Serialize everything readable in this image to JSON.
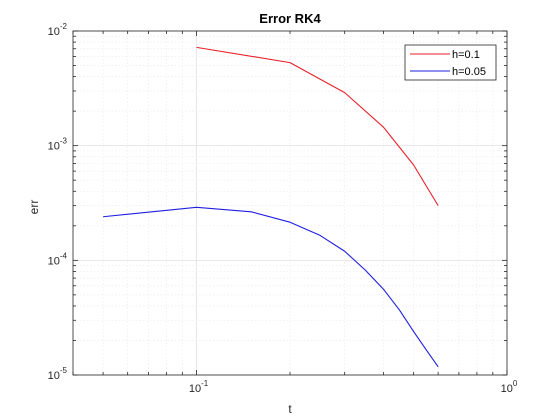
{
  "chart_data": {
    "type": "line",
    "title": "Error RK4",
    "xlabel": "t",
    "ylabel": "err",
    "xscale": "log",
    "yscale": "log",
    "xlim": [
      0.04,
      1
    ],
    "ylim": [
      1e-05,
      0.01
    ],
    "grid": true,
    "legend_position": "top-right",
    "x_tick_labels": [
      {
        "value": 0.1,
        "base": "10",
        "exp": "-1"
      },
      {
        "value": 1,
        "base": "10",
        "exp": "0"
      }
    ],
    "y_tick_labels": [
      {
        "value": 1e-05,
        "base": "10",
        "exp": "-5"
      },
      {
        "value": 0.0001,
        "base": "10",
        "exp": "-4"
      },
      {
        "value": 0.001,
        "base": "10",
        "exp": "-3"
      },
      {
        "value": 0.01,
        "base": "10",
        "exp": "-2"
      }
    ],
    "series": [
      {
        "name": "h=0.1",
        "color": "#e8202a",
        "x": [
          0.1,
          0.2,
          0.3,
          0.4,
          0.5,
          0.6
        ],
        "y": [
          0.0072,
          0.0053,
          0.0029,
          0.00145,
          0.00068,
          0.0003
        ]
      },
      {
        "name": "h=0.05",
        "color": "#1f1fe0",
        "x": [
          0.05,
          0.1,
          0.15,
          0.2,
          0.25,
          0.3,
          0.35,
          0.4,
          0.45,
          0.5,
          0.55,
          0.6
        ],
        "y": [
          0.00024,
          0.00029,
          0.000265,
          0.000215,
          0.000165,
          0.00012,
          8.2e-05,
          5.6e-05,
          3.7e-05,
          2.4e-05,
          1.65e-05,
          1.18e-05
        ]
      }
    ]
  }
}
